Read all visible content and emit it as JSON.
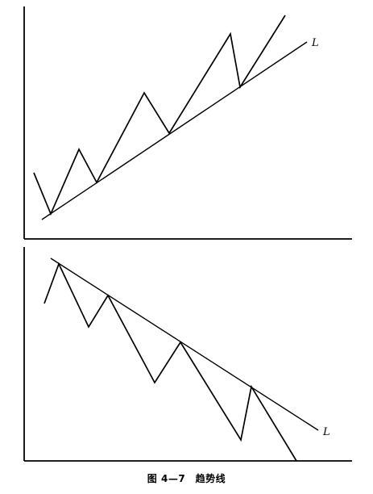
{
  "caption": "图 4—7　趋势线",
  "panels": [
    {
      "name": "uptrend",
      "line_label": "L"
    },
    {
      "name": "downtrend",
      "line_label": "L"
    }
  ]
}
